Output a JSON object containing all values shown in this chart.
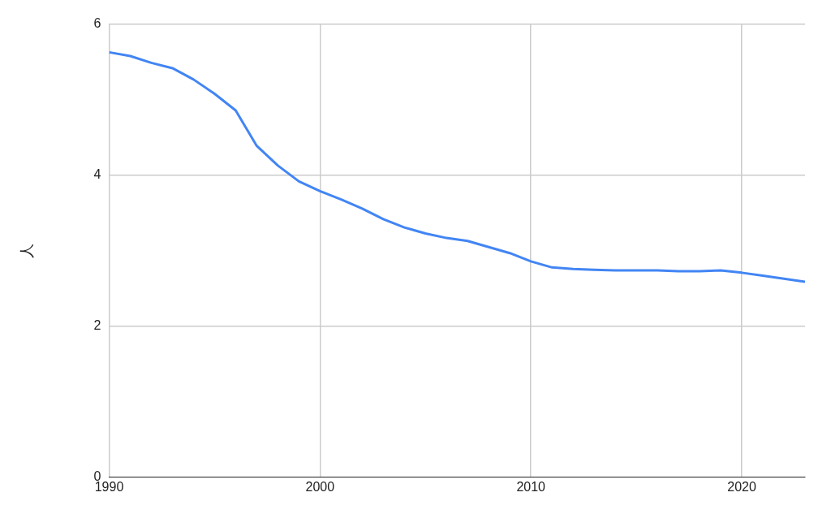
{
  "chart_data": {
    "type": "line",
    "ylabel": "人",
    "x": [
      1990,
      1991,
      1992,
      1993,
      1994,
      1995,
      1996,
      1997,
      1998,
      1999,
      2000,
      2001,
      2002,
      2003,
      2004,
      2005,
      2006,
      2007,
      2008,
      2009,
      2010,
      2011,
      2012,
      2013,
      2014,
      2015,
      2016,
      2017,
      2018,
      2019,
      2020,
      2021,
      2022,
      2023
    ],
    "series": [
      {
        "color": "#4285f4",
        "values": [
          5.63,
          5.58,
          5.49,
          5.42,
          5.27,
          5.08,
          4.86,
          4.39,
          4.13,
          3.92,
          3.79,
          3.68,
          3.56,
          3.42,
          3.31,
          3.23,
          3.17,
          3.13,
          3.05,
          2.97,
          2.86,
          2.78,
          2.76,
          2.75,
          2.74,
          2.74,
          2.74,
          2.73,
          2.73,
          2.74,
          2.71,
          2.67,
          2.63,
          2.59
        ]
      }
    ],
    "xlim": [
      1990,
      2023
    ],
    "xticks": [
      1990,
      2000,
      2010,
      2020
    ],
    "ylim": [
      0,
      6
    ],
    "yticks": [
      0,
      2,
      4,
      6
    ],
    "grid": true,
    "legend": false,
    "marker": "none",
    "line_style": "solid"
  }
}
